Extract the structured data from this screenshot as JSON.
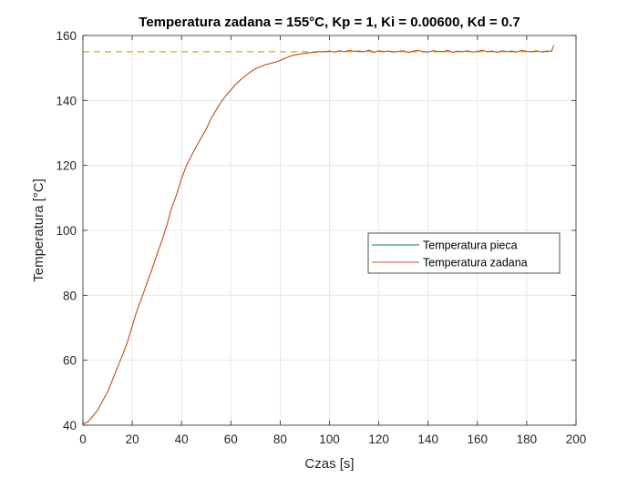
{
  "chart_data": {
    "type": "line",
    "title": "Temperatura zadana = 155°C, Kp = 1, Ki = 0.00600, Kd = 0.7",
    "xlabel": "Czas [s]",
    "ylabel": "Temperatura [°C]",
    "xlim": [
      0,
      200
    ],
    "ylim": [
      40,
      160
    ],
    "xticks": [
      0,
      20,
      40,
      60,
      80,
      100,
      120,
      140,
      160,
      180,
      200
    ],
    "yticks": [
      40,
      60,
      80,
      100,
      120,
      140,
      160
    ],
    "grid": true,
    "legend_position": "center-right",
    "series": [
      {
        "name": "Temperatura pieca",
        "color": "#0e7d6e",
        "style": "solid",
        "x": [
          0,
          2,
          4,
          6,
          8,
          10,
          12,
          14,
          16,
          18,
          20,
          22,
          24,
          26,
          28,
          30,
          32,
          34,
          36,
          38,
          40,
          42,
          44,
          46,
          48,
          50,
          52,
          54,
          56,
          58,
          60,
          62,
          64,
          66,
          68,
          70,
          72,
          74,
          76,
          78,
          80,
          82,
          84,
          86,
          88,
          90,
          92,
          94,
          96,
          98,
          100,
          102,
          104,
          106,
          108,
          110,
          112,
          114,
          116,
          118,
          120,
          122,
          124,
          126,
          128,
          130,
          132,
          134,
          136,
          138,
          140,
          142,
          144,
          146,
          148,
          150,
          152,
          154,
          156,
          158,
          160,
          162,
          164,
          166,
          168,
          170,
          172,
          174,
          176,
          178,
          180,
          182,
          184,
          186,
          188,
          190,
          191
        ],
        "y": [
          40.4,
          41.0,
          42.8,
          44.6,
          47.5,
          50.2,
          54.0,
          57.8,
          61.5,
          65.5,
          70.5,
          75.5,
          79.5,
          83.8,
          88.0,
          92.5,
          96.8,
          101.5,
          107.0,
          111.0,
          116.0,
          120.0,
          123.0,
          125.8,
          128.5,
          131.2,
          134.5,
          137.0,
          139.5,
          141.5,
          143.2,
          145.0,
          146.4,
          147.6,
          148.8,
          149.8,
          150.4,
          151.0,
          151.4,
          151.8,
          152.3,
          153.0,
          153.6,
          154.0,
          154.3,
          154.5,
          154.7,
          154.8,
          155.0,
          155.0,
          155.2,
          154.9,
          155.3,
          155.0,
          155.4,
          155.1,
          155.2,
          155.0,
          155.5,
          154.8,
          155.3,
          155.0,
          155.2,
          154.9,
          155.1,
          155.3,
          154.8,
          155.2,
          155.4,
          155.0,
          154.9,
          155.3,
          155.1,
          155.0,
          155.4,
          154.8,
          155.2,
          155.0,
          155.3,
          154.9,
          155.1,
          155.4,
          155.0,
          155.2,
          154.8,
          155.3,
          155.0,
          155.2,
          154.9,
          155.4,
          155.1,
          155.0,
          155.3,
          154.9,
          155.2,
          155.1,
          157.0
        ]
      },
      {
        "name": "Temperatura zadana",
        "color": "#d95319",
        "style": "solid",
        "x": [
          0,
          2,
          4,
          6,
          8,
          10,
          12,
          14,
          16,
          18,
          20,
          22,
          24,
          26,
          28,
          30,
          32,
          34,
          36,
          38,
          40,
          42,
          44,
          46,
          48,
          50,
          52,
          54,
          56,
          58,
          60,
          62,
          64,
          66,
          68,
          70,
          72,
          74,
          76,
          78,
          80,
          82,
          84,
          86,
          88,
          90,
          92,
          94,
          96,
          98,
          100,
          102,
          104,
          106,
          108,
          110,
          112,
          114,
          116,
          118,
          120,
          122,
          124,
          126,
          128,
          130,
          132,
          134,
          136,
          138,
          140,
          142,
          144,
          146,
          148,
          150,
          152,
          154,
          156,
          158,
          160,
          162,
          164,
          166,
          168,
          170,
          172,
          174,
          176,
          178,
          180,
          182,
          184,
          186,
          188,
          190,
          191
        ],
        "y": [
          40.4,
          41.0,
          42.8,
          44.6,
          47.5,
          50.2,
          54.0,
          57.8,
          61.5,
          65.5,
          70.5,
          75.5,
          79.5,
          83.8,
          88.0,
          92.5,
          96.8,
          101.5,
          107.0,
          111.0,
          116.0,
          120.0,
          123.0,
          125.8,
          128.5,
          131.2,
          134.5,
          137.0,
          139.5,
          141.5,
          143.2,
          145.0,
          146.4,
          147.6,
          148.8,
          149.8,
          150.4,
          151.0,
          151.4,
          151.8,
          152.3,
          153.0,
          153.6,
          154.0,
          154.3,
          154.5,
          154.7,
          154.8,
          155.0,
          155.0,
          155.2,
          154.9,
          155.3,
          155.0,
          155.4,
          155.1,
          155.2,
          155.0,
          155.5,
          154.8,
          155.3,
          155.0,
          155.2,
          154.9,
          155.1,
          155.3,
          154.8,
          155.2,
          155.4,
          155.0,
          154.9,
          155.3,
          155.1,
          155.0,
          155.4,
          154.8,
          155.2,
          155.0,
          155.3,
          154.9,
          155.1,
          155.4,
          155.0,
          155.2,
          154.8,
          155.3,
          155.0,
          155.2,
          154.9,
          155.4,
          155.1,
          155.0,
          155.3,
          154.9,
          155.2,
          155.1,
          157.0
        ]
      }
    ],
    "reference_line": {
      "y": 155,
      "x_range": [
        0,
        191
      ],
      "color": "#edb120",
      "style": "dashed"
    },
    "legend": [
      "Temperatura pieca",
      "Temperatura zadana"
    ]
  }
}
